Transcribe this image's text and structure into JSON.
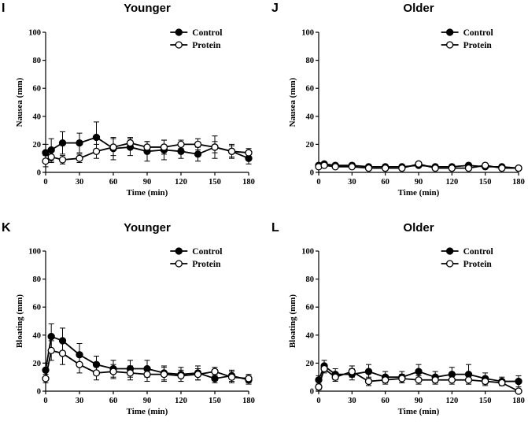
{
  "chart_data": [
    {
      "panel": "I",
      "type": "line",
      "title": "Younger",
      "xlabel": "Time (min)",
      "ylabel": "Nausea (mm)",
      "xlim": [
        0,
        180
      ],
      "ylim": [
        0,
        100
      ],
      "xticks": [
        0,
        30,
        60,
        90,
        120,
        150,
        180
      ],
      "yticks": [
        0,
        20,
        40,
        60,
        80,
        100
      ],
      "legend": "top-right",
      "series": [
        {
          "name": "Control",
          "filled": true,
          "x": [
            0,
            5,
            15,
            30,
            45,
            60,
            75,
            90,
            105,
            120,
            135,
            150,
            165,
            180
          ],
          "y": [
            14,
            16,
            21,
            21,
            25,
            17,
            18,
            15,
            16,
            15,
            13,
            18,
            15,
            10
          ],
          "err": [
            6,
            8,
            8,
            7,
            11,
            8,
            6,
            7,
            7,
            5,
            5,
            8,
            5,
            4
          ]
        },
        {
          "name": "Protein",
          "filled": false,
          "x": [
            0,
            5,
            15,
            30,
            45,
            60,
            75,
            90,
            105,
            120,
            135,
            150,
            165,
            180
          ],
          "y": [
            8,
            11,
            9,
            10,
            15,
            18,
            21,
            18,
            18,
            20,
            20,
            18,
            15,
            14
          ],
          "err": [
            4,
            4,
            3,
            3,
            5,
            6,
            4,
            4,
            5,
            3,
            4,
            4,
            4,
            3
          ]
        }
      ]
    },
    {
      "panel": "J",
      "type": "line",
      "title": "Older",
      "xlabel": "Time (min)",
      "ylabel": "Nausea (mm)",
      "xlim": [
        0,
        180
      ],
      "ylim": [
        0,
        100
      ],
      "xticks": [
        0,
        30,
        60,
        90,
        120,
        150,
        180
      ],
      "yticks": [
        0,
        20,
        40,
        60,
        80,
        100
      ],
      "legend": "top-right",
      "series": [
        {
          "name": "Control",
          "filled": true,
          "x": [
            0,
            5,
            15,
            30,
            45,
            60,
            75,
            90,
            105,
            120,
            135,
            150,
            165,
            180
          ],
          "y": [
            5,
            6,
            5,
            5,
            4,
            4,
            4,
            5,
            4,
            4,
            5,
            4,
            4,
            3
          ],
          "err": [
            1,
            1,
            1,
            1,
            1,
            1,
            1,
            1,
            1,
            1,
            1,
            1,
            1,
            1
          ]
        },
        {
          "name": "Protein",
          "filled": false,
          "x": [
            0,
            5,
            15,
            30,
            45,
            60,
            75,
            90,
            105,
            120,
            135,
            150,
            165,
            180
          ],
          "y": [
            4,
            5,
            4,
            4,
            3,
            3,
            3,
            6,
            3,
            3,
            3,
            5,
            3,
            3
          ],
          "err": [
            1,
            1,
            1,
            1,
            1,
            1,
            1,
            1,
            1,
            1,
            1,
            1,
            1,
            1
          ]
        }
      ]
    },
    {
      "panel": "K",
      "type": "line",
      "title": "Younger",
      "xlabel": "Time (min)",
      "ylabel": "Bloating (mm)",
      "xlim": [
        0,
        180
      ],
      "ylim": [
        0,
        100
      ],
      "xticks": [
        0,
        30,
        60,
        90,
        120,
        150,
        180
      ],
      "yticks": [
        0,
        20,
        40,
        60,
        80,
        100
      ],
      "legend": "top-right",
      "series": [
        {
          "name": "Control",
          "filled": true,
          "x": [
            0,
            5,
            15,
            30,
            45,
            60,
            75,
            90,
            105,
            120,
            135,
            150,
            165,
            180
          ],
          "y": [
            15,
            39,
            36,
            26,
            19,
            16,
            16,
            16,
            13,
            12,
            13,
            9,
            11,
            8
          ],
          "err": [
            5,
            9,
            9,
            8,
            6,
            6,
            6,
            6,
            5,
            5,
            5,
            3,
            4,
            3
          ]
        },
        {
          "name": "Protein",
          "filled": false,
          "x": [
            0,
            5,
            15,
            30,
            45,
            60,
            75,
            90,
            105,
            120,
            135,
            150,
            165,
            180
          ],
          "y": [
            9,
            29,
            27,
            19,
            13,
            14,
            13,
            12,
            12,
            11,
            12,
            14,
            10,
            9
          ],
          "err": [
            3,
            7,
            8,
            6,
            5,
            5,
            5,
            5,
            5,
            4,
            4,
            3,
            4,
            3
          ]
        }
      ]
    },
    {
      "panel": "L",
      "type": "line",
      "title": "Older",
      "xlabel": "Time (min)",
      "ylabel": "Bloating (mm)",
      "xlim": [
        0,
        180
      ],
      "ylim": [
        0,
        100
      ],
      "xticks": [
        0,
        30,
        60,
        90,
        120,
        150,
        180
      ],
      "yticks": [
        0,
        20,
        40,
        60,
        80,
        100
      ],
      "legend": "top-right",
      "series": [
        {
          "name": "Control",
          "filled": true,
          "x": [
            0,
            5,
            15,
            30,
            45,
            60,
            75,
            90,
            105,
            120,
            135,
            150,
            165,
            180
          ],
          "y": [
            8,
            18,
            12,
            12,
            14,
            10,
            10,
            14,
            10,
            12,
            12,
            9,
            7,
            7
          ],
          "err": [
            3,
            4,
            4,
            4,
            5,
            4,
            4,
            5,
            4,
            5,
            7,
            4,
            3,
            4
          ]
        },
        {
          "name": "Protein",
          "filled": false,
          "x": [
            0,
            5,
            15,
            30,
            45,
            60,
            75,
            90,
            105,
            120,
            135,
            150,
            165,
            180
          ],
          "y": [
            3,
            16,
            10,
            14,
            7,
            8,
            9,
            8,
            8,
            8,
            8,
            7,
            6,
            0
          ],
          "err": [
            2,
            3,
            3,
            4,
            3,
            3,
            3,
            3,
            3,
            3,
            3,
            3,
            2,
            1
          ]
        }
      ]
    }
  ]
}
